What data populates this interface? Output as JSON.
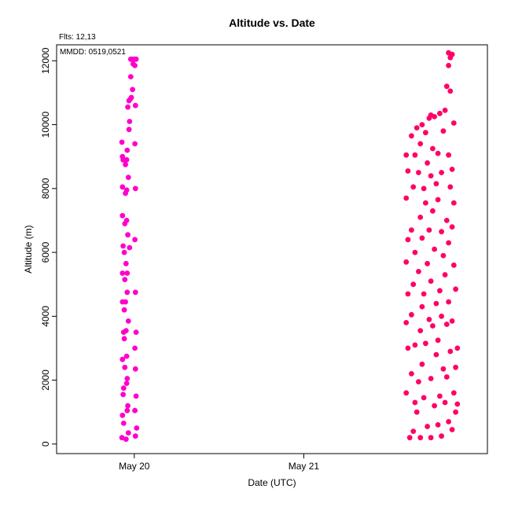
{
  "chart_data": {
    "type": "scatter",
    "title": "Altitude  vs. Date",
    "xlabel": "Date (UTC)",
    "ylabel": "Altitude (m)",
    "annotations": {
      "fits": "Flts: 12,13",
      "mmdd": "MMDD: 0519,0521"
    },
    "x_ticks": [
      {
        "label": "May 20",
        "value": "2024-05-20T00:00"
      },
      {
        "label": "May 21",
        "value": "2024-05-21T00:00"
      }
    ],
    "y_ticks": [
      0,
      2000,
      4000,
      6000,
      8000,
      10000,
      12000
    ],
    "xlim": [
      "2024-05-19T13:00",
      "2024-05-22T02:00"
    ],
    "ylim": [
      -300,
      12500
    ],
    "grid": false,
    "legend": "none",
    "series": [
      {
        "color": "#ff00cc",
        "points": [
          [
            "2024-05-19T22:15",
            200
          ],
          [
            "2024-05-19T22:50",
            150
          ],
          [
            "2024-05-19T23:10",
            350
          ],
          [
            "2024-05-20T00:10",
            250
          ],
          [
            "2024-05-20T00:20",
            500
          ],
          [
            "2024-05-19T22:30",
            650
          ],
          [
            "2024-05-19T22:20",
            900
          ],
          [
            "2024-05-19T23:00",
            1050
          ],
          [
            "2024-05-19T23:05",
            1200
          ],
          [
            "2024-05-20T00:05",
            1050
          ],
          [
            "2024-05-20T00:15",
            1500
          ],
          [
            "2024-05-19T22:25",
            1550
          ],
          [
            "2024-05-19T22:30",
            1750
          ],
          [
            "2024-05-19T22:55",
            1900
          ],
          [
            "2024-05-19T23:00",
            2050
          ],
          [
            "2024-05-20T00:10",
            2350
          ],
          [
            "2024-05-19T22:40",
            2400
          ],
          [
            "2024-05-19T22:20",
            2650
          ],
          [
            "2024-05-19T22:55",
            2750
          ],
          [
            "2024-05-20T00:05",
            3000
          ],
          [
            "2024-05-19T22:35",
            3300
          ],
          [
            "2024-05-19T22:30",
            3500
          ],
          [
            "2024-05-19T22:50",
            3550
          ],
          [
            "2024-05-19T23:10",
            3850
          ],
          [
            "2024-05-20T00:15",
            3500
          ],
          [
            "2024-05-19T22:35",
            4200
          ],
          [
            "2024-05-19T22:20",
            4450
          ],
          [
            "2024-05-19T22:45",
            4450
          ],
          [
            "2024-05-19T23:00",
            4750
          ],
          [
            "2024-05-20T00:10",
            4750
          ],
          [
            "2024-05-19T22:40",
            5150
          ],
          [
            "2024-05-19T22:20",
            5350
          ],
          [
            "2024-05-19T23:00",
            5350
          ],
          [
            "2024-05-19T22:50",
            5650
          ],
          [
            "2024-05-19T22:35",
            6000
          ],
          [
            "2024-05-19T23:20",
            6150
          ],
          [
            "2024-05-19T22:25",
            6200
          ],
          [
            "2024-05-20T00:05",
            6400
          ],
          [
            "2024-05-19T23:05",
            6550
          ],
          [
            "2024-05-19T22:40",
            6900
          ],
          [
            "2024-05-19T22:55",
            7000
          ],
          [
            "2024-05-19T22:20",
            7150
          ],
          [
            "2024-05-19T22:45",
            7850
          ],
          [
            "2024-05-19T22:55",
            7950
          ],
          [
            "2024-05-19T22:20",
            8050
          ],
          [
            "2024-05-20T00:10",
            8000
          ],
          [
            "2024-05-19T23:10",
            8350
          ],
          [
            "2024-05-19T22:45",
            8750
          ],
          [
            "2024-05-19T22:55",
            8900
          ],
          [
            "2024-05-19T22:25",
            8900
          ],
          [
            "2024-05-19T22:20",
            9000
          ],
          [
            "2024-05-19T23:00",
            9200
          ],
          [
            "2024-05-20T00:05",
            9400
          ],
          [
            "2024-05-19T22:15",
            9450
          ],
          [
            "2024-05-19T23:15",
            9850
          ],
          [
            "2024-05-19T23:20",
            10100
          ],
          [
            "2024-05-19T23:05",
            10550
          ],
          [
            "2024-05-20T00:10",
            10600
          ],
          [
            "2024-05-19T23:15",
            10750
          ],
          [
            "2024-05-19T23:25",
            10800
          ],
          [
            "2024-05-19T23:35",
            10850
          ],
          [
            "2024-05-19T23:45",
            11100
          ],
          [
            "2024-05-19T23:30",
            11500
          ],
          [
            "2024-05-19T23:50",
            11900
          ],
          [
            "2024-05-20T00:05",
            11850
          ],
          [
            "2024-05-19T23:30",
            12050
          ],
          [
            "2024-05-19T23:40",
            12050
          ],
          [
            "2024-05-19T23:55",
            12050
          ],
          [
            "2024-05-20T00:05",
            12050
          ],
          [
            "2024-05-20T00:15",
            12050
          ]
        ]
      },
      {
        "color": "#ff0066",
        "points": [
          [
            "2024-05-21T15:00",
            200
          ],
          [
            "2024-05-21T16:30",
            200
          ],
          [
            "2024-05-21T18:00",
            200
          ],
          [
            "2024-05-21T19:30",
            250
          ],
          [
            "2024-05-21T21:00",
            450
          ],
          [
            "2024-05-21T15:30",
            400
          ],
          [
            "2024-05-21T17:30",
            550
          ],
          [
            "2024-05-21T19:00",
            600
          ],
          [
            "2024-05-21T20:30",
            700
          ],
          [
            "2024-05-21T21:30",
            1000
          ],
          [
            "2024-05-21T16:00",
            1000
          ],
          [
            "2024-05-21T18:30",
            1200
          ],
          [
            "2024-05-21T20:00",
            1300
          ],
          [
            "2024-05-21T21:45",
            1250
          ],
          [
            "2024-05-21T15:45",
            1300
          ],
          [
            "2024-05-21T14:30",
            1600
          ],
          [
            "2024-05-21T17:00",
            1450
          ],
          [
            "2024-05-21T19:15",
            1500
          ],
          [
            "2024-05-21T21:15",
            1600
          ],
          [
            "2024-05-21T16:15",
            1950
          ],
          [
            "2024-05-21T18:00",
            2050
          ],
          [
            "2024-05-21T20:15",
            2100
          ],
          [
            "2024-05-21T15:15",
            2200
          ],
          [
            "2024-05-21T19:45",
            2350
          ],
          [
            "2024-05-21T21:30",
            2400
          ],
          [
            "2024-05-21T16:45",
            2500
          ],
          [
            "2024-05-21T18:45",
            2800
          ],
          [
            "2024-05-21T14:45",
            3000
          ],
          [
            "2024-05-21T20:45",
            2900
          ],
          [
            "2024-05-21T17:15",
            3150
          ],
          [
            "2024-05-21T19:00",
            3250
          ],
          [
            "2024-05-21T15:45",
            3100
          ],
          [
            "2024-05-21T21:45",
            3000
          ],
          [
            "2024-05-21T16:30",
            3550
          ],
          [
            "2024-05-21T18:15",
            3700
          ],
          [
            "2024-05-21T20:15",
            3750
          ],
          [
            "2024-05-21T14:30",
            3800
          ],
          [
            "2024-05-21T17:45",
            3900
          ],
          [
            "2024-05-21T19:30",
            4000
          ],
          [
            "2024-05-21T21:00",
            3850
          ],
          [
            "2024-05-21T15:15",
            4050
          ],
          [
            "2024-05-21T16:45",
            4300
          ],
          [
            "2024-05-21T18:45",
            4400
          ],
          [
            "2024-05-21T20:30",
            4450
          ],
          [
            "2024-05-21T14:45",
            4700
          ],
          [
            "2024-05-21T17:00",
            4700
          ],
          [
            "2024-05-21T19:15",
            4800
          ],
          [
            "2024-05-21T21:30",
            4850
          ],
          [
            "2024-05-21T15:30",
            5000
          ],
          [
            "2024-05-21T18:00",
            5100
          ],
          [
            "2024-05-21T20:00",
            5300
          ],
          [
            "2024-05-21T16:15",
            5400
          ],
          [
            "2024-05-21T17:30",
            5650
          ],
          [
            "2024-05-21T19:45",
            5900
          ],
          [
            "2024-05-21T14:30",
            5700
          ],
          [
            "2024-05-21T21:15",
            5600
          ],
          [
            "2024-05-21T15:45",
            6000
          ],
          [
            "2024-05-21T18:30",
            6100
          ],
          [
            "2024-05-21T20:30",
            6300
          ],
          [
            "2024-05-21T16:45",
            6450
          ],
          [
            "2024-05-21T17:45",
            6700
          ],
          [
            "2024-05-21T19:30",
            6650
          ],
          [
            "2024-05-21T14:45",
            6400
          ],
          [
            "2024-05-21T21:00",
            6800
          ],
          [
            "2024-05-21T15:15",
            6700
          ],
          [
            "2024-05-21T16:30",
            7100
          ],
          [
            "2024-05-21T18:15",
            7300
          ],
          [
            "2024-05-21T20:15",
            7000
          ],
          [
            "2024-05-21T14:30",
            7700
          ],
          [
            "2024-05-21T17:15",
            7550
          ],
          [
            "2024-05-21T19:00",
            7650
          ],
          [
            "2024-05-21T21:15",
            7550
          ],
          [
            "2024-05-21T15:30",
            8050
          ],
          [
            "2024-05-21T17:00",
            8000
          ],
          [
            "2024-05-21T18:45",
            8150
          ],
          [
            "2024-05-21T20:45",
            8050
          ],
          [
            "2024-05-21T14:45",
            8550
          ],
          [
            "2024-05-21T16:15",
            8500
          ],
          [
            "2024-05-21T18:00",
            8400
          ],
          [
            "2024-05-21T19:30",
            8500
          ],
          [
            "2024-05-21T21:00",
            8600
          ],
          [
            "2024-05-21T15:45",
            9050
          ],
          [
            "2024-05-21T17:30",
            8800
          ],
          [
            "2024-05-21T14:30",
            9050
          ],
          [
            "2024-05-21T19:00",
            9100
          ],
          [
            "2024-05-21T20:30",
            9050
          ],
          [
            "2024-05-21T16:30",
            9400
          ],
          [
            "2024-05-21T18:15",
            9250
          ],
          [
            "2024-05-21T15:15",
            9650
          ],
          [
            "2024-05-21T17:15",
            9750
          ],
          [
            "2024-05-21T19:45",
            9800
          ],
          [
            "2024-05-21T21:15",
            10050
          ],
          [
            "2024-05-21T16:00",
            9900
          ],
          [
            "2024-05-21T18:30",
            10250
          ],
          [
            "2024-05-21T17:45",
            10200
          ],
          [
            "2024-05-21T19:15",
            10350
          ],
          [
            "2024-05-21T20:00",
            10450
          ],
          [
            "2024-05-21T18:00",
            10300
          ],
          [
            "2024-05-21T16:45",
            10000
          ],
          [
            "2024-05-21T20:45",
            11050
          ],
          [
            "2024-05-21T20:15",
            11200
          ],
          [
            "2024-05-21T20:30",
            11850
          ],
          [
            "2024-05-21T20:45",
            12100
          ],
          [
            "2024-05-21T20:30",
            12250
          ],
          [
            "2024-05-21T21:00",
            12200
          ]
        ]
      }
    ]
  }
}
